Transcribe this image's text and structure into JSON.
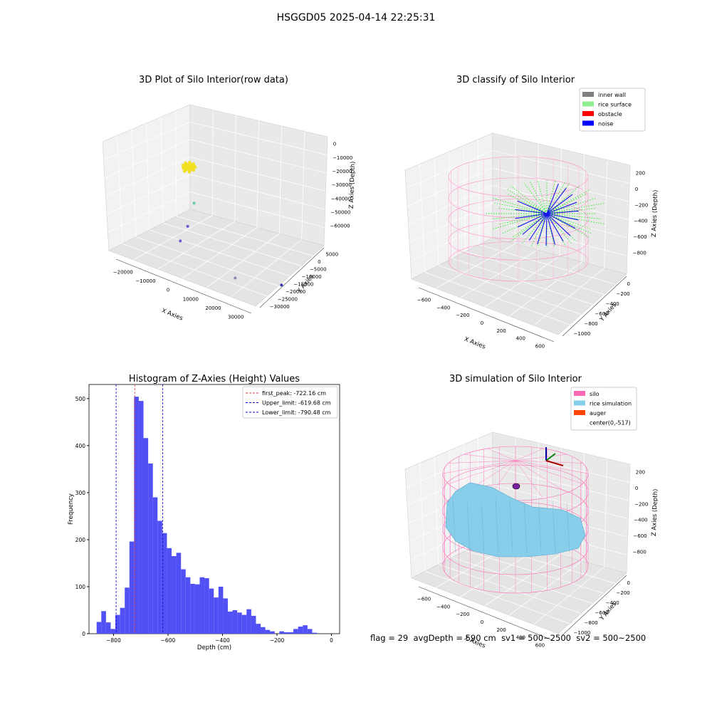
{
  "suptitle": "HSGGD05 2025-04-14 22:25:31",
  "footer": {
    "flag": "flag = 29",
    "avg_depth": "avgDepth = 590 cm",
    "sv1": "sv1 = 500~2500",
    "sv2": "sv2 = 500~2500"
  },
  "colors": {
    "hist": "#5050f5",
    "peak_line": "#e03030",
    "limit_line": "#0000cc",
    "inner_wall": "#808080",
    "rice_surface": "#90ee90",
    "obstacle": "#ff0000",
    "noise": "#0000ff",
    "silo": "#ff69b4",
    "rice_simulation": "#87ceeb",
    "auger": "#ff4500",
    "pane": "#f2f2f2"
  },
  "chart_data": [
    {
      "type": "scatter",
      "projection": "3d",
      "title": "3D Plot of Silo Interior(row data)",
      "xlabel": "X Axies",
      "ylabel": "Y Axies",
      "zlabel": "Z Axies (Depth)",
      "xticks": [
        "−20000",
        "−10000",
        "0",
        "10000",
        "20000",
        "30000"
      ],
      "yticks": [
        "5000",
        "0",
        "−5000",
        "−10000",
        "−15000",
        "−20000",
        "−25000",
        "−30000"
      ],
      "zticks": [
        "0",
        "−10000",
        "−20000",
        "−30000",
        "−40000",
        "−50000",
        "−60000"
      ],
      "xlim": [
        -24000,
        32000
      ],
      "ylim": [
        -31000,
        6000
      ],
      "zlim": [
        -65000,
        5000
      ],
      "points": [
        {
          "x": 3000,
          "y": 2000,
          "z": 0,
          "color": "#f0e020"
        },
        {
          "x": -15000,
          "y": -20000,
          "z": -35000,
          "color": "#6a5acd"
        },
        {
          "x": -20000,
          "y": -22000,
          "z": -45000,
          "color": "#6a5acd"
        },
        {
          "x": 0,
          "y": -5000,
          "z": -20000,
          "color": "#66cdaa"
        },
        {
          "x": 15000,
          "y": -10000,
          "z": -55000,
          "color": "#8a8ab0"
        },
        {
          "x": 22000,
          "y": -28000,
          "z": -50000,
          "color": "#3a3ab0"
        }
      ]
    },
    {
      "type": "scatter",
      "projection": "3d",
      "title": "3D classify of Silo Interior",
      "xlabel": "X Axies",
      "ylabel": "Y Axies",
      "zlabel": "Z Axies (Depth)",
      "xticks": [
        "−600",
        "−400",
        "−200",
        "0",
        "200",
        "400",
        "600"
      ],
      "yticks": [
        "0",
        "−200",
        "−400",
        "−600",
        "−800",
        "−1000"
      ],
      "zticks": [
        "200",
        "0",
        "−200",
        "−400",
        "−600",
        "−800"
      ],
      "xlim": [
        -650,
        650
      ],
      "ylim": [
        -1100,
        100
      ],
      "zlim": [
        -950,
        300
      ],
      "legend": [
        "inner wall",
        "rice surface",
        "obstacle",
        "noise"
      ],
      "legend_loc": "upper right"
    },
    {
      "type": "bar",
      "title": "Histogram of Z-Axies (Height) Values",
      "xlabel": "Depth (cm)",
      "ylabel": "Frequency",
      "xlim": [
        -890,
        30
      ],
      "ylim": [
        0,
        530
      ],
      "xticks": [
        "−800",
        "−600",
        "−400",
        "−200",
        "0"
      ],
      "xtick_values": [
        -800,
        -600,
        -400,
        -200,
        0
      ],
      "yticks": [
        "0",
        "100",
        "200",
        "300",
        "400",
        "500"
      ],
      "ytick_values": [
        0,
        100,
        200,
        300,
        400,
        500
      ],
      "bin_start": -862,
      "bin_width": 17.2,
      "values": [
        25,
        48,
        24,
        10,
        40,
        55,
        98,
        196,
        504,
        495,
        416,
        362,
        290,
        240,
        214,
        182,
        165,
        172,
        137,
        120,
        106,
        105,
        120,
        118,
        96,
        77,
        100,
        75,
        47,
        50,
        45,
        40,
        52,
        38,
        21,
        14,
        8,
        5,
        0,
        5,
        3,
        3,
        10,
        15,
        18,
        10,
        2,
        0
      ],
      "vlines": [
        {
          "x": -722.16,
          "label": "first_peak: -722.16 cm",
          "color": "#e03030"
        },
        {
          "x": -619.68,
          "label": "Upper_limit: -619.68 cm",
          "color": "#0000cc"
        },
        {
          "x": -790.48,
          "label": "Lower_limit: -790.48 cm",
          "color": "#0000cc"
        }
      ],
      "legend_loc": "upper right"
    },
    {
      "type": "surface",
      "projection": "3d",
      "title": "3D simulation of Silo Interior",
      "xlabel": "X Axies",
      "ylabel": "Y Axies",
      "zlabel": "Z Axies (Depth)",
      "xticks": [
        "−600",
        "−400",
        "−200",
        "0",
        "200",
        "400",
        "600"
      ],
      "yticks": [
        "0",
        "−200",
        "−400",
        "−600",
        "−800",
        "−1000"
      ],
      "zticks": [
        "200",
        "0",
        "−200",
        "−400",
        "−600",
        "−800"
      ],
      "xlim": [
        -650,
        650
      ],
      "ylim": [
        -1100,
        100
      ],
      "zlim": [
        -950,
        300
      ],
      "legend": [
        "silo",
        "rice simulation",
        "auger",
        "center(0,-517)"
      ],
      "legend_loc": "upper right"
    }
  ]
}
